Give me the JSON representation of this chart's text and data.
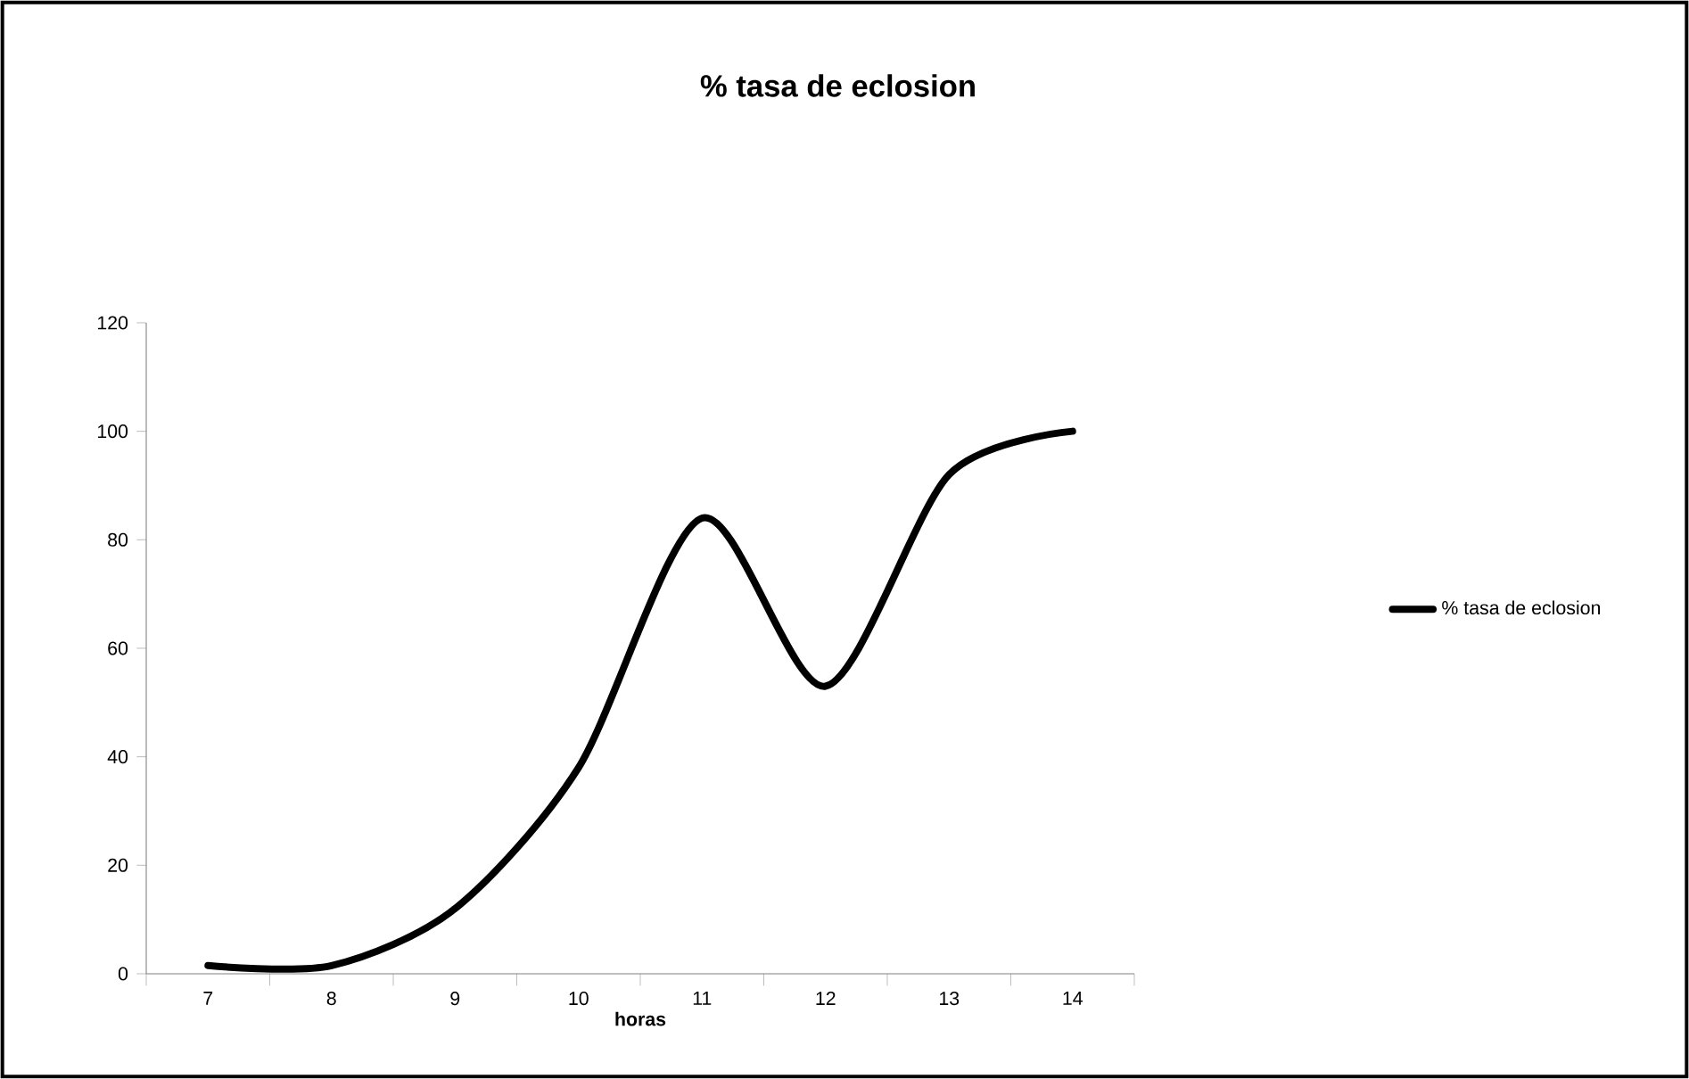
{
  "chart_data": {
    "type": "line",
    "title": "% tasa de eclosion",
    "xlabel": "**horas**",
    "categories": [
      "7",
      "8",
      "9",
      "10",
      "11",
      "12",
      "13",
      "14"
    ],
    "series": [
      {
        "name": "% tasa de eclosion",
        "color": "#000000",
        "values": [
          1.5,
          1.5,
          12,
          38,
          84,
          53,
          92,
          100
        ]
      }
    ],
    "ylim": [
      0,
      120
    ],
    "yticks": [
      0,
      20,
      40,
      60,
      80,
      100,
      120
    ],
    "legend": "right",
    "marker": "none"
  }
}
